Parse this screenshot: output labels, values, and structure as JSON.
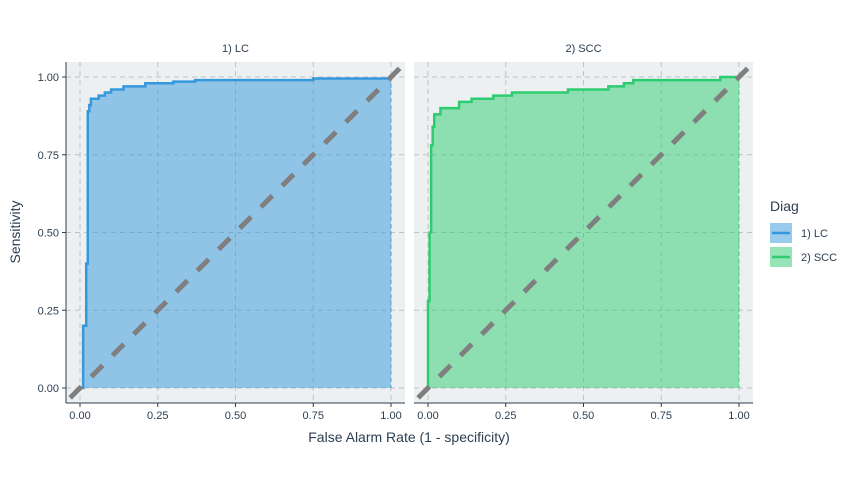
{
  "chart_data": {
    "type": "area",
    "xlabel": "False Alarm Rate (1 - specificity)",
    "ylabel": "Sensitivity",
    "xlim": [
      0,
      1
    ],
    "ylim": [
      0,
      1
    ],
    "x_ticks": [
      "0.00",
      "0.25",
      "0.50",
      "0.75",
      "1.00"
    ],
    "y_ticks": [
      "0.00",
      "0.25",
      "0.50",
      "0.75",
      "1.00"
    ],
    "grid": true,
    "reference_line": "diagonal",
    "legend": {
      "title": "Diag",
      "position": "right",
      "entries": [
        "1) LC",
        "2) SCC"
      ]
    },
    "panels": [
      {
        "title": "1) LC",
        "name": "1) LC",
        "color": "#3498db",
        "points": [
          [
            0.0,
            0.0
          ],
          [
            0.01,
            0.0
          ],
          [
            0.01,
            0.2
          ],
          [
            0.02,
            0.2
          ],
          [
            0.02,
            0.4
          ],
          [
            0.025,
            0.4
          ],
          [
            0.025,
            0.89
          ],
          [
            0.03,
            0.89
          ],
          [
            0.03,
            0.91
          ],
          [
            0.035,
            0.91
          ],
          [
            0.035,
            0.93
          ],
          [
            0.06,
            0.93
          ],
          [
            0.06,
            0.94
          ],
          [
            0.08,
            0.94
          ],
          [
            0.08,
            0.95
          ],
          [
            0.1,
            0.95
          ],
          [
            0.1,
            0.96
          ],
          [
            0.14,
            0.96
          ],
          [
            0.14,
            0.97
          ],
          [
            0.21,
            0.97
          ],
          [
            0.21,
            0.98
          ],
          [
            0.3,
            0.98
          ],
          [
            0.3,
            0.985
          ],
          [
            0.37,
            0.985
          ],
          [
            0.37,
            0.99
          ],
          [
            0.75,
            0.99
          ],
          [
            0.75,
            0.995
          ],
          [
            1.0,
            0.995
          ],
          [
            1.0,
            1.0
          ]
        ]
      },
      {
        "title": "2) SCC",
        "name": "2) SCC",
        "color": "#2ecc71",
        "points": [
          [
            0.0,
            0.0
          ],
          [
            0.0,
            0.28
          ],
          [
            0.005,
            0.28
          ],
          [
            0.005,
            0.5
          ],
          [
            0.01,
            0.5
          ],
          [
            0.01,
            0.78
          ],
          [
            0.015,
            0.78
          ],
          [
            0.015,
            0.84
          ],
          [
            0.02,
            0.84
          ],
          [
            0.02,
            0.88
          ],
          [
            0.04,
            0.88
          ],
          [
            0.04,
            0.9
          ],
          [
            0.1,
            0.9
          ],
          [
            0.1,
            0.92
          ],
          [
            0.14,
            0.92
          ],
          [
            0.14,
            0.93
          ],
          [
            0.21,
            0.93
          ],
          [
            0.21,
            0.94
          ],
          [
            0.27,
            0.94
          ],
          [
            0.27,
            0.95
          ],
          [
            0.45,
            0.95
          ],
          [
            0.45,
            0.96
          ],
          [
            0.58,
            0.96
          ],
          [
            0.58,
            0.97
          ],
          [
            0.63,
            0.97
          ],
          [
            0.63,
            0.98
          ],
          [
            0.66,
            0.98
          ],
          [
            0.66,
            0.99
          ],
          [
            0.94,
            0.99
          ],
          [
            0.94,
            1.0
          ],
          [
            1.0,
            1.0
          ]
        ]
      }
    ]
  }
}
